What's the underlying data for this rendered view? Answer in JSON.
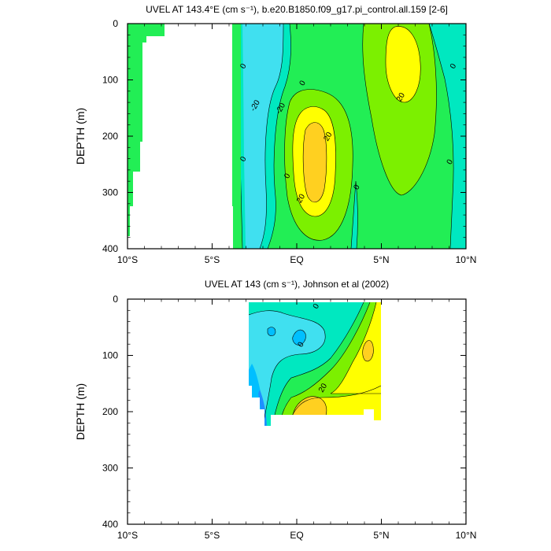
{
  "colors": {
    "c_lt_m20": "#1e90ff",
    "c_m20_m10": "#00bfff",
    "c_m10_0": "#40e0f0",
    "c_0_10": "#00e8c0",
    "c_10_20": "#22ee55",
    "c_20_30": "#7cf000",
    "c_30_40": "#ffff00",
    "c_gt_40": "#ffd020",
    "land": "#ffffff",
    "line": "#000000"
  },
  "chart_data": [
    {
      "type": "contour",
      "title": "UVEL AT 143.4°E (cm s⁻¹), b.e20.B1850.f09_g17.pi_control.all.159 [2-6]",
      "ylabel": "DEPTH (m)",
      "xlabel": "",
      "x_range": [
        -10,
        10
      ],
      "y_range": [
        0,
        400
      ],
      "y_reversed": true,
      "x_ticks": [
        {
          "value": -10,
          "label": "10°S"
        },
        {
          "value": -5,
          "label": "5°S"
        },
        {
          "value": 0,
          "label": "EQ"
        },
        {
          "value": 5,
          "label": "5°N"
        },
        {
          "value": 10,
          "label": "10°N"
        }
      ],
      "y_ticks": [
        0,
        100,
        200,
        300,
        400
      ],
      "contour_labels": [
        {
          "text": "0",
          "x": -3.2,
          "y": 75
        },
        {
          "text": "0",
          "x": -3.2,
          "y": 240
        },
        {
          "text": "-20",
          "x": -2.5,
          "y": 145
        },
        {
          "text": "-20",
          "x": -1.0,
          "y": 150
        },
        {
          "text": "0",
          "x": 0.3,
          "y": 105
        },
        {
          "text": "0",
          "x": -0.6,
          "y": 270
        },
        {
          "text": "20",
          "x": 1.8,
          "y": 200
        },
        {
          "text": "20",
          "x": 0.2,
          "y": 310
        },
        {
          "text": "0",
          "x": 3.5,
          "y": 290
        },
        {
          "text": "20",
          "x": 6.1,
          "y": 130
        },
        {
          "text": "0",
          "x": 9.2,
          "y": 75
        },
        {
          "text": "0",
          "x": 9.0,
          "y": 245
        }
      ]
    },
    {
      "type": "contour",
      "title": "UVEL AT 143 (cm s⁻¹), Johnson et al (2002)",
      "ylabel": "DEPTH (m)",
      "xlabel": "",
      "x_range": [
        -10,
        10
      ],
      "y_range": [
        0,
        400
      ],
      "y_reversed": true,
      "x_ticks": [
        {
          "value": -10,
          "label": "10°S"
        },
        {
          "value": -5,
          "label": "5°S"
        },
        {
          "value": 0,
          "label": "EQ"
        },
        {
          "value": 5,
          "label": "5°N"
        },
        {
          "value": 10,
          "label": "10°N"
        }
      ],
      "y_ticks": [
        0,
        100,
        200,
        300,
        400
      ],
      "contour_labels": [
        {
          "text": "0",
          "x": 1.1,
          "y": 12
        },
        {
          "text": "0",
          "x": 0.2,
          "y": 80
        },
        {
          "text": "20",
          "x": 1.5,
          "y": 157
        }
      ]
    }
  ]
}
